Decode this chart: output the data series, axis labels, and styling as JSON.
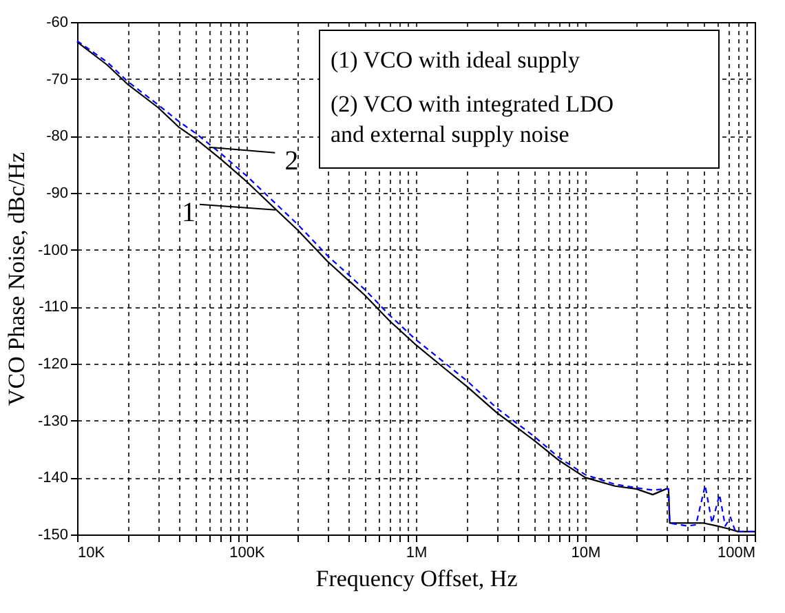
{
  "chart_data": {
    "type": "line",
    "xlabel": "Frequency Offset, Hz",
    "ylabel": "VCO Phase Noise, dBc/Hz",
    "log": "x",
    "grid": true,
    "xlim": [
      10000,
      100000000
    ],
    "xticks": [
      {
        "value": 10000,
        "label": "10K"
      },
      {
        "value": 20000,
        "label": null
      },
      {
        "value": 30000,
        "label": null
      },
      {
        "value": 40000,
        "label": null
      },
      {
        "value": 50000,
        "label": null
      },
      {
        "value": 60000,
        "label": null
      },
      {
        "value": 70000,
        "label": null
      },
      {
        "value": 80000,
        "label": null
      },
      {
        "value": 90000,
        "label": null
      },
      {
        "value": 100000,
        "label": "100K"
      },
      {
        "value": 200000,
        "label": null
      },
      {
        "value": 300000,
        "label": null
      },
      {
        "value": 400000,
        "label": null
      },
      {
        "value": 500000,
        "label": null
      },
      {
        "value": 600000,
        "label": null
      },
      {
        "value": 700000,
        "label": null
      },
      {
        "value": 800000,
        "label": null
      },
      {
        "value": 900000,
        "label": null
      },
      {
        "value": 1000000,
        "label": "1M"
      },
      {
        "value": 2000000,
        "label": null
      },
      {
        "value": 3000000,
        "label": null
      },
      {
        "value": 4000000,
        "label": null
      },
      {
        "value": 5000000,
        "label": null
      },
      {
        "value": 6000000,
        "label": null
      },
      {
        "value": 7000000,
        "label": null
      },
      {
        "value": 8000000,
        "label": null
      },
      {
        "value": 9000000,
        "label": null
      },
      {
        "value": 10000000,
        "label": "10M"
      },
      {
        "value": 20000000,
        "label": null
      },
      {
        "value": 30000000,
        "label": null
      },
      {
        "value": 40000000,
        "label": null
      },
      {
        "value": 50000000,
        "label": null
      },
      {
        "value": 60000000,
        "label": null
      },
      {
        "value": 70000000,
        "label": null
      },
      {
        "value": 80000000,
        "label": null
      },
      {
        "value": 90000000,
        "label": null
      },
      {
        "value": 100000000,
        "label": "100M"
      }
    ],
    "ylim": [
      -150,
      -60
    ],
    "yticks": [
      -150,
      -140,
      -130,
      -120,
      -110,
      -100,
      -90,
      -80,
      -70,
      -60
    ],
    "series": [
      {
        "color": "#000000",
        "line_style": "solid",
        "x": [
          10000,
          15000,
          20000,
          30000,
          40000,
          50000,
          70000,
          100000,
          150000,
          200000,
          300000,
          500000,
          700000,
          1000000,
          1500000,
          2000000,
          3000000,
          5000000,
          7000000,
          10000000,
          15000000,
          20000000,
          25000000,
          30000000,
          31000000,
          31500000,
          40000000,
          50000000,
          60000000,
          70000000,
          80000000,
          100000000
        ],
        "values": [
          -63.5,
          -67.5,
          -71,
          -75,
          -78.5,
          -80.5,
          -84,
          -88,
          -93,
          -96.5,
          -102,
          -108,
          -112.5,
          -116.7,
          -121,
          -124,
          -128.6,
          -133.5,
          -137,
          -140,
          -141.5,
          -142,
          -143,
          -142,
          -142,
          -148,
          -148,
          -148,
          -148.5,
          -149,
          -149.5,
          -149.5
        ]
      },
      {
        "color": "#0000ff",
        "line_style": "dashed",
        "x": [
          10000,
          15000,
          20000,
          30000,
          40000,
          50000,
          70000,
          100000,
          150000,
          200000,
          300000,
          500000,
          700000,
          1000000,
          1500000,
          2000000,
          3000000,
          5000000,
          7000000,
          10000000,
          15000000,
          20000000,
          25000000,
          30000000,
          31000000,
          31500000,
          40000000,
          45000000,
          51000000,
          56000000,
          62000000,
          67000000,
          72000000,
          77000000,
          100000000
        ],
        "values": [
          -63.3,
          -67,
          -70.5,
          -74.5,
          -77.5,
          -79.5,
          -83,
          -87,
          -92,
          -95.5,
          -101,
          -107,
          -111.5,
          -115.8,
          -120,
          -123,
          -127.8,
          -132.8,
          -136.5,
          -139.5,
          -141.2,
          -141.8,
          -142.2,
          -142,
          -142,
          -148,
          -148.5,
          -148.3,
          -141.4,
          -148,
          -143,
          -148.5,
          -147,
          -149.5,
          -149.5
        ]
      }
    ],
    "annotations": [
      {
        "text": "2",
        "x": 60000,
        "y": -82
      },
      {
        "text": "1",
        "x": 148000,
        "y": -93
      },
      "(1) VCO with ideal supply",
      "(2) VCO with integrated LDO\n      and external supply noise"
    ]
  }
}
